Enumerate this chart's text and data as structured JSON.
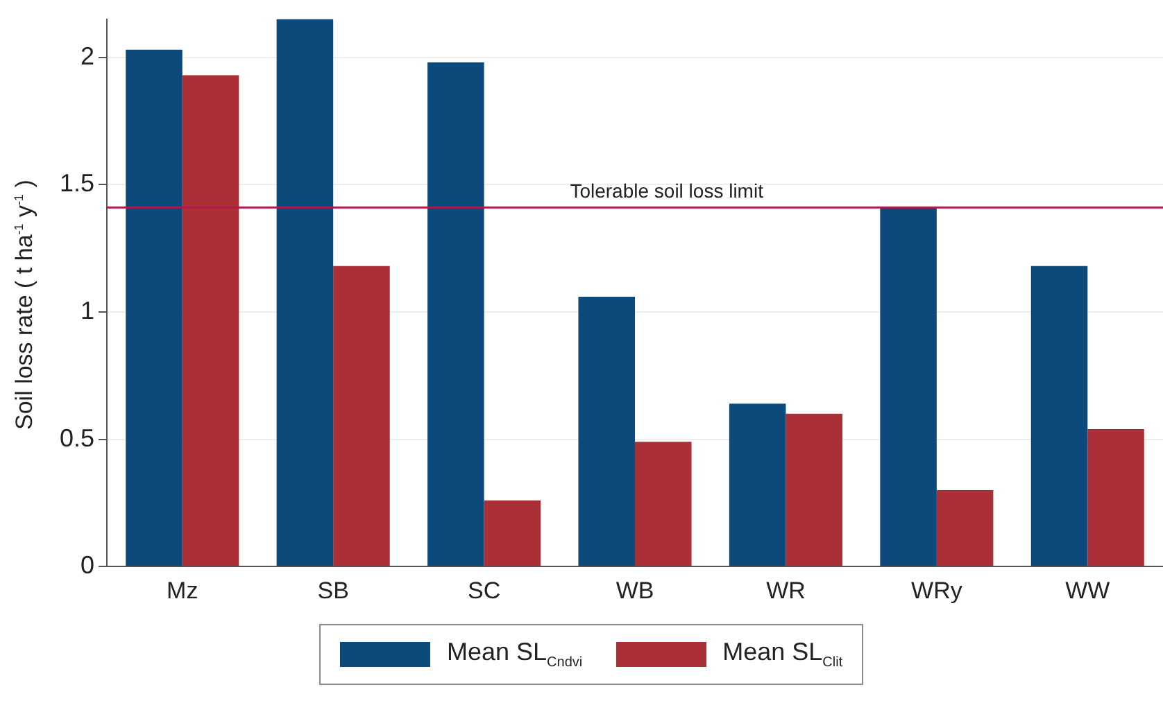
{
  "chart_data": {
    "type": "bar",
    "ylabel": "Soil loss rate ( t ha$^{-1}$ y$^{-1}$ )",
    "categories": [
      "Mz",
      "SB",
      "SC",
      "WB",
      "WR",
      "WRy",
      "WW"
    ],
    "series": [
      {
        "name": "Mean SL$_{Cndvi}$",
        "color": "#0b4a7a",
        "values": [
          2.03,
          2.15,
          1.98,
          1.06,
          0.64,
          1.41,
          1.18
        ]
      },
      {
        "name": "Mean SL$_{Clit}$",
        "color": "#ab2f37",
        "values": [
          1.93,
          1.18,
          0.26,
          0.49,
          0.6,
          0.3,
          0.54
        ]
      }
    ],
    "ylim": [
      0,
      2.15
    ],
    "yticks": [
      0,
      0.5,
      1,
      1.5,
      2
    ],
    "grid": "y",
    "legend": "bottom",
    "ref_lines": [
      {
        "axis": "y",
        "value": 1.41,
        "label": "Tolerable soil loss limit",
        "color": "#b0174a"
      }
    ]
  }
}
